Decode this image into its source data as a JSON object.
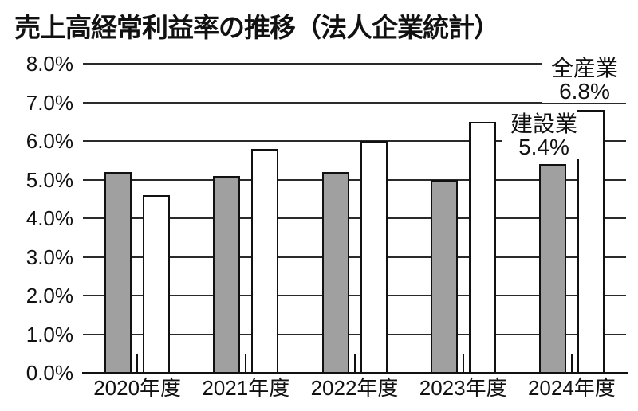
{
  "title": "売上高経常利益率の推移（法人企業統計）",
  "chart_data": {
    "type": "bar",
    "title": "売上高経常利益率の推移（法人企業統計）",
    "categories": [
      "2020年度",
      "2021年度",
      "2022年度",
      "2023年度",
      "2024年度"
    ],
    "series": [
      {
        "name": "建設業",
        "color": "#a0a0a0",
        "values": [
          5.2,
          5.1,
          5.2,
          5.0,
          5.4
        ]
      },
      {
        "name": "全産業",
        "color": "#ffffff",
        "values": [
          4.6,
          5.8,
          6.0,
          6.5,
          6.8
        ]
      }
    ],
    "xlabel": "",
    "ylabel": "",
    "ylim": [
      0,
      8
    ],
    "ytick_step": 1.0,
    "ytick_labels": [
      "0.0%",
      "1.0%",
      "2.0%",
      "3.0%",
      "4.0%",
      "5.0%",
      "6.0%",
      "7.0%",
      "8.0%"
    ],
    "grid": true,
    "legend_position": "none",
    "annotations": [
      {
        "target_series": "全産業",
        "target_category": "2024年度",
        "lines": [
          "全産業",
          "6.8%"
        ]
      },
      {
        "target_series": "建設業",
        "target_category": "2024年度",
        "lines": [
          "建設業",
          "5.4%"
        ]
      }
    ]
  },
  "colors": {
    "background": "#ffffff",
    "text": "#111111",
    "gridline": "#2a2a2a",
    "axis": "#111111",
    "bar_outline": "#111111",
    "bar_gray": "#a0a0a0",
    "bar_white": "#ffffff"
  }
}
